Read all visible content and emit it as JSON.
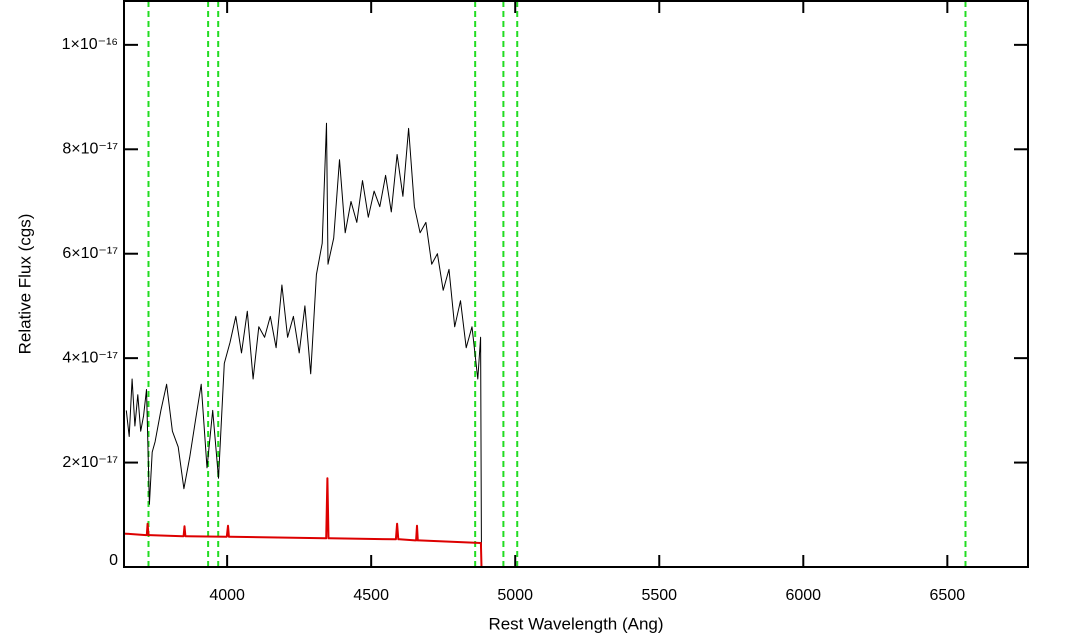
{
  "chart_data": {
    "type": "line",
    "x_label": "Rest Wavelength (Ang)",
    "y_label": "Relative Flux (cgs)",
    "xlim": [
      3642,
      6780
    ],
    "ylim": [
      0,
      1.084e-16
    ],
    "xticks": [
      4000,
      4500,
      5000,
      5500,
      6000,
      6500
    ],
    "yticks": [
      0,
      {
        "value": 2e-17,
        "label": "2×10⁻¹⁷"
      },
      {
        "value": 4e-17,
        "label": "4×10⁻¹⁷"
      },
      {
        "value": 6e-17,
        "label": "6×10⁻¹⁷"
      },
      {
        "value": 8e-17,
        "label": "8×10⁻¹⁷"
      },
      {
        "value": 1e-16,
        "label": "1×10⁻¹⁶"
      }
    ],
    "vlines": [
      3727,
      3934,
      3969,
      4861,
      4959,
      5007,
      6563
    ],
    "vline_color": "#22dd22",
    "series": [
      {
        "color": "#000000",
        "x": [
          3650,
          3660,
          3670,
          3680,
          3690,
          3700,
          3710,
          3720,
          3730,
          3740,
          3750,
          3770,
          3790,
          3810,
          3830,
          3850,
          3870,
          3890,
          3910,
          3930,
          3950,
          3970,
          3990,
          4010,
          4030,
          4050,
          4070,
          4090,
          4110,
          4130,
          4150,
          4170,
          4190,
          4210,
          4230,
          4250,
          4270,
          4290,
          4310,
          4330,
          4345,
          4350,
          4370,
          4390,
          4410,
          4430,
          4450,
          4470,
          4490,
          4510,
          4530,
          4550,
          4570,
          4590,
          4610,
          4630,
          4650,
          4670,
          4690,
          4710,
          4730,
          4750,
          4770,
          4790,
          4810,
          4830,
          4850,
          4870,
          4880,
          4883,
          6780
        ],
        "values": [
          3e-17,
          2.5e-17,
          3.6e-17,
          2.7e-17,
          3.3e-17,
          2.6e-17,
          2.9e-17,
          3.4e-17,
          1.2e-17,
          2.2e-17,
          2.4e-17,
          3e-17,
          3.5e-17,
          2.6e-17,
          2.3e-17,
          1.5e-17,
          2.1e-17,
          2.8e-17,
          3.5e-17,
          1.9e-17,
          3e-17,
          1.7e-17,
          3.9e-17,
          4.3e-17,
          4.8e-17,
          4.1e-17,
          4.9e-17,
          3.6e-17,
          4.6e-17,
          4.4e-17,
          4.8e-17,
          4.2e-17,
          5.4e-17,
          4.4e-17,
          4.8e-17,
          4.1e-17,
          5e-17,
          3.7e-17,
          5.6e-17,
          6.2e-17,
          8.5e-17,
          5.8e-17,
          6.3e-17,
          7.8e-17,
          6.4e-17,
          7e-17,
          6.6e-17,
          7.4e-17,
          6.7e-17,
          7.2e-17,
          6.9e-17,
          7.5e-17,
          6.8e-17,
          7.9e-17,
          7.1e-17,
          8.4e-17,
          6.9e-17,
          6.4e-17,
          6.6e-17,
          5.8e-17,
          6e-17,
          5.3e-17,
          5.7e-17,
          4.6e-17,
          5.1e-17,
          4.2e-17,
          4.6e-17,
          3.6e-17,
          4.4e-17,
          0,
          0
        ]
      },
      {
        "color": "#dd0000",
        "x": [
          3642,
          3718,
          3721,
          3724,
          3727,
          3731,
          3846,
          3849,
          3852,
          3855,
          3859,
          3996,
          3999,
          4003,
          4006,
          4010,
          4340,
          4344,
          4348,
          4352,
          4356,
          4582,
          4586,
          4590,
          4594,
          4598,
          4652,
          4656,
          4659,
          4662,
          4666,
          4881,
          4883,
          6780
        ],
        "values": [
          6.4e-18,
          6.1e-18,
          6.1e-18,
          8.3e-18,
          6.1e-18,
          6.1e-18,
          5.9e-18,
          5.9e-18,
          7.8e-18,
          5.9e-18,
          5.9e-18,
          5.8e-18,
          5.8e-18,
          7.9e-18,
          5.8e-18,
          5.8e-18,
          5.5e-18,
          5.5e-18,
          1.7e-17,
          5.5e-18,
          5.5e-18,
          5.3e-18,
          5.3e-18,
          8.3e-18,
          5.3e-18,
          5.3e-18,
          5.1e-18,
          5.1e-18,
          7.9e-18,
          5.1e-18,
          5.1e-18,
          4.6e-18,
          0,
          0
        ]
      }
    ]
  }
}
